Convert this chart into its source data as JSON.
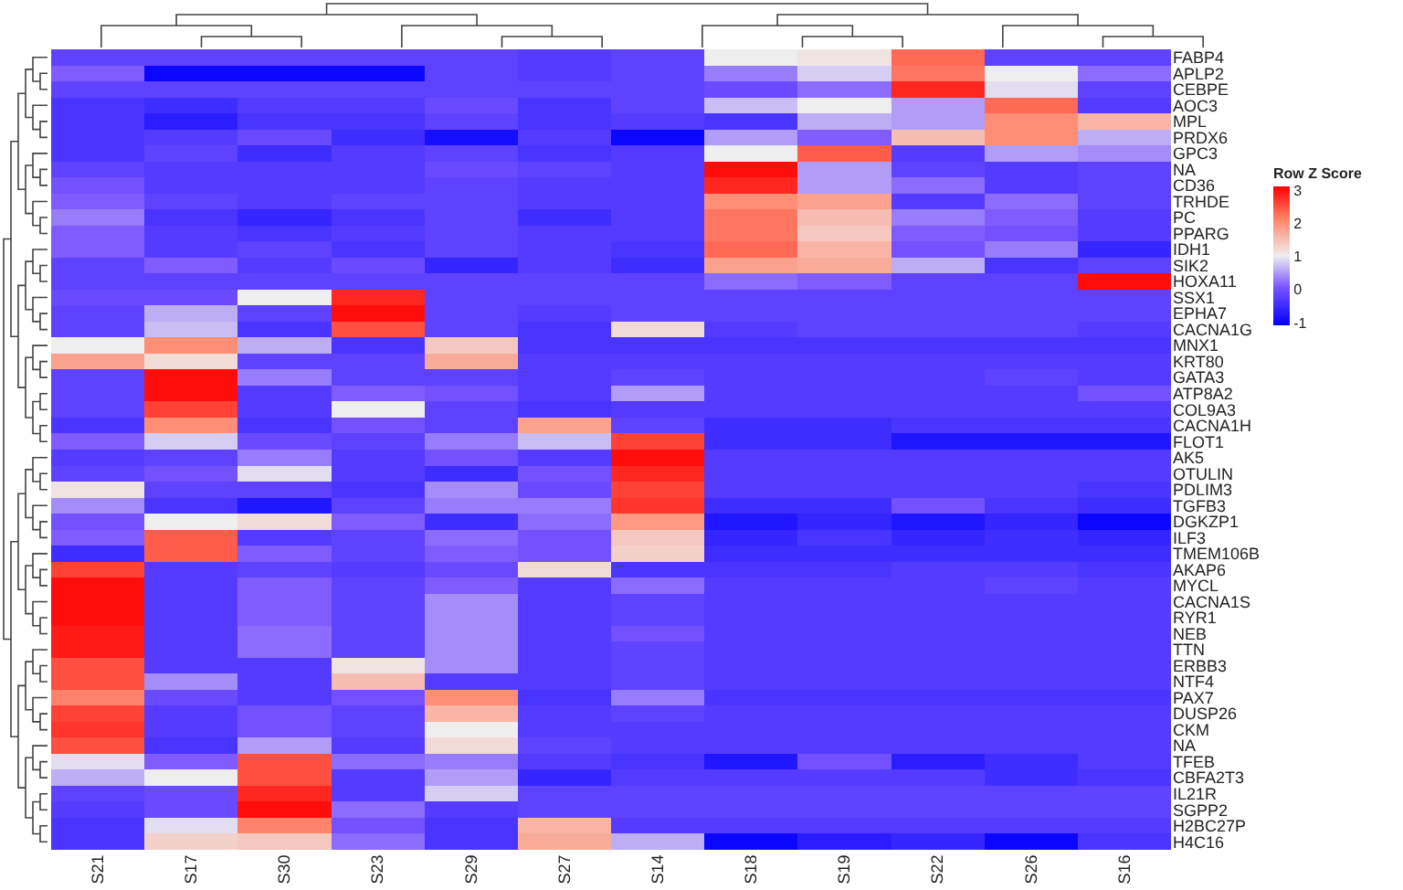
{
  "chart_data": {
    "type": "heatmap",
    "clabel": "Row Z Score",
    "clim": [
      -1.1,
      3.1
    ],
    "cticks": [
      -1,
      0,
      1,
      2,
      3
    ],
    "categories": [
      "S21",
      "S17",
      "S30",
      "S23",
      "S29",
      "S27",
      "S14",
      "S18",
      "S19",
      "S22",
      "S26",
      "S16"
    ],
    "y_categories": [
      "FABP4",
      "APLP2",
      "CEBPE",
      "AOC3",
      "MPL",
      "PRDX6",
      "GPC3",
      "NA",
      "CD36",
      "TRHDE",
      "PC",
      "PPARG",
      "IDH1",
      "SIK2",
      "HOXA11",
      "SSX1",
      "EPHA7",
      "CACNA1G",
      "MNX1",
      "KRT80",
      "GATA3",
      "ATP8A2",
      "COL9A3",
      "CACNA1H",
      "FLOT1",
      "AK5",
      "OTULIN",
      "PDLIM3",
      "TGFB3",
      "DGKZP1",
      "ILF3",
      "TMEM106B",
      "AKAP6",
      "MYCL",
      "CACNA1S",
      "RYR1",
      "NEB",
      "TTN",
      "ERBB3",
      "NTF4",
      "PAX7",
      "DUSP26",
      "CKM",
      "NA",
      "TFEB",
      "CBFA2T3",
      "IL21R",
      "SGPP2",
      "H2BC27P",
      "H4C16"
    ],
    "cells": [
      [
        -0.2,
        -0.2,
        -0.2,
        -0.2,
        -0.2,
        -0.3,
        -0.2,
        1.0,
        1.1,
        2.3,
        -0.2,
        -0.2
      ],
      [
        0.1,
        -1,
        -1,
        -1,
        -0.2,
        -0.3,
        -0.2,
        0.3,
        0.8,
        2.2,
        1.0,
        0.2
      ],
      [
        -0.2,
        -0.2,
        -0.2,
        -0.2,
        -0.2,
        -0.2,
        -0.2,
        -0.1,
        0.2,
        2.8,
        0.9,
        -0.2
      ],
      [
        -0.4,
        -0.5,
        -0.3,
        -0.3,
        -0.1,
        -0.4,
        -0.2,
        0.7,
        1.0,
        0.5,
        2.3,
        -0.3
      ],
      [
        -0.4,
        -0.7,
        -0.4,
        -0.4,
        -0.2,
        -0.4,
        -0.3,
        -0.4,
        0.6,
        0.5,
        2.0,
        1.6
      ],
      [
        -0.4,
        -0.3,
        -0.1,
        -0.5,
        -0.9,
        -0.3,
        -1.0,
        0.5,
        0.1,
        1.5,
        2.0,
        0.6
      ],
      [
        -0.4,
        -0.2,
        -0.5,
        -0.3,
        -0.2,
        -0.4,
        -0.3,
        1.0,
        2.4,
        -0.3,
        0.5,
        0.4
      ],
      [
        -0.2,
        -0.3,
        -0.3,
        -0.3,
        -0.1,
        -0.2,
        -0.3,
        3.0,
        0.5,
        -0.2,
        -0.3,
        -0.2
      ],
      [
        0.0,
        -0.3,
        -0.3,
        -0.3,
        -0.2,
        -0.3,
        -0.3,
        2.8,
        0.5,
        0.2,
        -0.3,
        -0.2
      ],
      [
        0.1,
        -0.2,
        -0.3,
        -0.2,
        -0.2,
        -0.3,
        -0.3,
        2.0,
        1.8,
        -0.3,
        0.2,
        -0.2
      ],
      [
        0.3,
        -0.4,
        -0.6,
        -0.4,
        -0.2,
        -0.5,
        -0.3,
        2.2,
        1.5,
        0.3,
        0.1,
        -0.3
      ],
      [
        0.1,
        -0.3,
        -0.4,
        -0.3,
        -0.2,
        -0.3,
        -0.3,
        2.2,
        1.4,
        0.1,
        0.0,
        -0.3
      ],
      [
        0.1,
        -0.3,
        -0.2,
        -0.4,
        -0.2,
        -0.3,
        -0.4,
        2.3,
        1.6,
        0.0,
        0.3,
        -0.6
      ],
      [
        -0.2,
        0.1,
        -0.3,
        -0.1,
        -0.6,
        -0.3,
        -0.5,
        1.8,
        1.7,
        0.6,
        -0.4,
        -0.2
      ],
      [
        -0.2,
        -0.2,
        -0.2,
        -0.2,
        -0.2,
        -0.2,
        -0.2,
        0.2,
        0.1,
        -0.2,
        -0.2,
        3.0
      ],
      [
        -0.1,
        -0.1,
        1.0,
        2.8,
        -0.2,
        -0.2,
        -0.2,
        -0.2,
        -0.2,
        -0.2,
        -0.2,
        -0.2
      ],
      [
        -0.2,
        0.6,
        -0.2,
        3.0,
        -0.2,
        -0.3,
        -0.2,
        -0.2,
        -0.2,
        -0.2,
        -0.2,
        -0.2
      ],
      [
        -0.2,
        0.7,
        -0.4,
        2.5,
        -0.2,
        -0.4,
        1.2,
        -0.3,
        -0.2,
        -0.2,
        -0.2,
        -0.3
      ],
      [
        1.0,
        2.0,
        0.6,
        -0.4,
        1.4,
        -0.4,
        -0.4,
        -0.4,
        -0.4,
        -0.4,
        -0.4,
        -0.4
      ],
      [
        1.8,
        1.2,
        -0.2,
        -0.2,
        1.7,
        -0.3,
        -0.3,
        -0.3,
        -0.3,
        -0.3,
        -0.3,
        -0.3
      ],
      [
        -0.2,
        3.0,
        0.3,
        -0.2,
        -0.2,
        -0.3,
        -0.2,
        -0.3,
        -0.3,
        -0.3,
        -0.2,
        -0.3
      ],
      [
        -0.2,
        3.0,
        -0.3,
        0.1,
        0.0,
        -0.3,
        0.5,
        -0.3,
        -0.3,
        -0.3,
        -0.3,
        0.0
      ],
      [
        -0.2,
        2.6,
        -0.3,
        1.0,
        -0.2,
        -0.4,
        -0.3,
        -0.3,
        -0.3,
        -0.3,
        -0.3,
        -0.3
      ],
      [
        -0.4,
        2.0,
        -0.4,
        0.0,
        -0.2,
        1.8,
        -0.2,
        -0.5,
        -0.5,
        -0.4,
        -0.4,
        -0.4
      ],
      [
        0.1,
        0.8,
        -0.1,
        -0.2,
        0.3,
        0.7,
        2.6,
        -0.5,
        -0.5,
        -0.8,
        -0.8,
        -0.8
      ],
      [
        -0.3,
        -0.2,
        0.3,
        -0.3,
        0.0,
        -0.3,
        3.0,
        -0.3,
        -0.3,
        -0.3,
        -0.3,
        -0.3
      ],
      [
        -0.2,
        0.0,
        0.9,
        -0.3,
        -0.5,
        0.0,
        2.8,
        -0.3,
        -0.3,
        -0.3,
        -0.3,
        -0.3
      ],
      [
        1.1,
        -0.2,
        -0.2,
        -0.4,
        0.4,
        -0.1,
        2.6,
        -0.3,
        -0.3,
        -0.3,
        -0.3,
        -0.4
      ],
      [
        0.4,
        -0.4,
        -0.8,
        -0.2,
        0.3,
        0.3,
        2.7,
        -0.5,
        -0.5,
        0.0,
        -0.4,
        -0.5
      ],
      [
        0.0,
        1.0,
        1.2,
        0.1,
        -0.5,
        0.2,
        1.9,
        -0.8,
        -0.6,
        -0.8,
        -0.6,
        -1.0
      ],
      [
        0.1,
        2.4,
        -0.3,
        -0.2,
        0.2,
        0.0,
        1.4,
        -0.6,
        -0.4,
        -0.6,
        -0.5,
        -0.6
      ],
      [
        -0.5,
        2.4,
        0.1,
        -0.2,
        0.1,
        0.0,
        1.3,
        -0.5,
        -0.5,
        -0.5,
        -0.5,
        -0.5
      ],
      [
        2.6,
        -0.3,
        -0.2,
        -0.3,
        -0.1,
        1.2,
        -0.4,
        -0.4,
        -0.4,
        -0.3,
        -0.3,
        -0.4
      ],
      [
        3.0,
        -0.3,
        0.1,
        -0.2,
        0.1,
        -0.3,
        0.2,
        -0.3,
        -0.3,
        -0.3,
        -0.2,
        -0.3
      ],
      [
        3.0,
        -0.3,
        0.1,
        -0.2,
        0.4,
        -0.3,
        -0.2,
        -0.3,
        -0.3,
        -0.3,
        -0.3,
        -0.3
      ],
      [
        3.0,
        -0.3,
        0.1,
        -0.2,
        0.4,
        -0.3,
        -0.2,
        -0.3,
        -0.3,
        -0.3,
        -0.3,
        -0.3
      ],
      [
        2.9,
        -0.3,
        0.2,
        -0.2,
        0.4,
        -0.3,
        0.0,
        -0.3,
        -0.3,
        -0.3,
        -0.3,
        -0.3
      ],
      [
        2.9,
        -0.3,
        0.2,
        -0.2,
        0.4,
        -0.3,
        -0.2,
        -0.3,
        -0.3,
        -0.3,
        -0.3,
        -0.3
      ],
      [
        2.5,
        -0.3,
        -0.3,
        1.1,
        0.4,
        -0.3,
        -0.2,
        -0.3,
        -0.3,
        -0.3,
        -0.3,
        -0.3
      ],
      [
        2.5,
        0.4,
        -0.3,
        1.5,
        -0.3,
        -0.3,
        -0.2,
        -0.3,
        -0.3,
        -0.3,
        -0.3,
        -0.3
      ],
      [
        2.1,
        -0.1,
        -0.3,
        0.0,
        2.0,
        -0.4,
        0.3,
        -0.4,
        -0.4,
        -0.4,
        -0.4,
        -0.4
      ],
      [
        2.6,
        -0.3,
        0.0,
        -0.2,
        1.6,
        -0.3,
        -0.2,
        -0.3,
        -0.3,
        -0.3,
        -0.3,
        -0.3
      ],
      [
        2.7,
        -0.3,
        0.0,
        -0.2,
        1.0,
        -0.3,
        -0.3,
        -0.3,
        -0.3,
        -0.3,
        -0.3,
        -0.3
      ],
      [
        2.5,
        -0.4,
        0.5,
        -0.3,
        1.2,
        -0.2,
        -0.3,
        -0.3,
        -0.3,
        -0.3,
        -0.3,
        -0.3
      ],
      [
        0.9,
        0.1,
        2.5,
        0.2,
        0.3,
        -0.3,
        -0.4,
        -0.8,
        0.0,
        -0.7,
        -0.5,
        -0.3
      ],
      [
        0.6,
        1.0,
        2.5,
        -0.3,
        0.5,
        -0.6,
        -0.3,
        -0.3,
        -0.3,
        -0.3,
        -0.5,
        -0.4
      ],
      [
        -0.2,
        -0.1,
        2.8,
        -0.3,
        0.8,
        -0.2,
        -0.2,
        -0.2,
        -0.2,
        -0.2,
        -0.2,
        -0.2
      ],
      [
        -0.3,
        -0.1,
        3.0,
        0.2,
        -0.3,
        -0.2,
        -0.2,
        -0.2,
        -0.2,
        -0.2,
        -0.2,
        -0.2
      ],
      [
        -0.4,
        0.9,
        2.1,
        0.0,
        -0.4,
        1.6,
        -0.3,
        -0.3,
        -0.3,
        -0.3,
        -0.3,
        -0.3
      ],
      [
        -0.4,
        1.3,
        1.4,
        0.2,
        -0.4,
        1.7,
        0.6,
        -1.0,
        -0.7,
        -0.6,
        -1.0,
        -0.4
      ]
    ]
  }
}
